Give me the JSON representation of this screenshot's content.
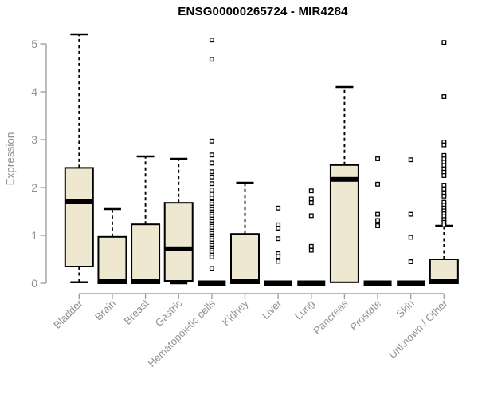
{
  "chart_data": {
    "type": "boxplot",
    "title": "ENSG00000265724 - MIR4284",
    "ylabel": "Expression",
    "xlabel": "",
    "ylim": [
      0,
      5.25
    ],
    "yticks": [
      0,
      1,
      2,
      3,
      4,
      5
    ],
    "grid": "off",
    "x_tick_rotation": 45,
    "categories": [
      "Bladder",
      "Brain",
      "Breast",
      "Gastric",
      "Hematopoietic cells",
      "Kidney",
      "Liver",
      "Lung",
      "Pancreas",
      "Prostate",
      "Skin",
      "Unknown / Other"
    ],
    "boxes": [
      {
        "label": "Bladder",
        "q1": 0.35,
        "median": 1.7,
        "q3": 2.41,
        "whisker_low": 0.02,
        "whisker_high": 5.2,
        "outliers": []
      },
      {
        "label": "Brain",
        "q1": 0.0,
        "median": 0.04,
        "q3": 0.97,
        "whisker_low": 0.0,
        "whisker_high": 1.55,
        "outliers": []
      },
      {
        "label": "Breast",
        "q1": 0.0,
        "median": 0.04,
        "q3": 1.23,
        "whisker_low": 0.0,
        "whisker_high": 2.65,
        "outliers": []
      },
      {
        "label": "Gastric",
        "q1": 0.05,
        "median": 0.72,
        "q3": 1.68,
        "whisker_low": 0.0,
        "whisker_high": 2.6,
        "outliers": []
      },
      {
        "label": "Hematopoietic cells",
        "flat": true,
        "q1": 0.0,
        "median": 0.0,
        "q3": 0.0,
        "whisker_low": 0.0,
        "whisker_high": 0.0,
        "outliers": [
          5.08,
          4.68,
          2.97,
          2.68,
          2.51,
          2.33,
          2.22,
          2.08,
          1.95,
          1.86,
          1.78,
          1.69,
          1.64,
          1.59,
          1.54,
          1.49,
          1.44,
          1.39,
          1.34,
          1.29,
          1.24,
          1.19,
          1.14,
          1.09,
          1.04,
          0.99,
          0.94,
          0.89,
          0.84,
          0.79,
          0.74,
          0.69,
          0.64,
          0.59,
          0.55,
          0.31
        ]
      },
      {
        "label": "Kidney",
        "q1": 0.0,
        "median": 0.04,
        "q3": 1.03,
        "whisker_low": 0.0,
        "whisker_high": 2.1,
        "outliers": []
      },
      {
        "label": "Liver",
        "flat": true,
        "q1": 0.0,
        "median": 0.0,
        "q3": 0.0,
        "whisker_low": 0.0,
        "whisker_high": 0.0,
        "outliers": [
          1.57,
          1.22,
          1.15,
          0.93,
          0.62,
          0.56,
          0.46
        ]
      },
      {
        "label": "Lung",
        "flat": true,
        "q1": 0.0,
        "median": 0.0,
        "q3": 0.0,
        "whisker_low": 0.0,
        "whisker_high": 0.0,
        "outliers": [
          1.93,
          1.76,
          1.68,
          1.41,
          0.77,
          0.69
        ]
      },
      {
        "label": "Pancreas",
        "q1": 0.02,
        "median": 2.17,
        "q3": 2.47,
        "whisker_low": 0.0,
        "whisker_high": 4.1,
        "outliers": []
      },
      {
        "label": "Prostate",
        "flat": true,
        "q1": 0.0,
        "median": 0.0,
        "q3": 0.0,
        "whisker_low": 0.0,
        "whisker_high": 0.0,
        "outliers": [
          2.6,
          2.07,
          1.44,
          1.31,
          1.2
        ]
      },
      {
        "label": "Skin",
        "flat": true,
        "q1": 0.0,
        "median": 0.0,
        "q3": 0.0,
        "whisker_low": 0.0,
        "whisker_high": 0.0,
        "outliers": [
          2.58,
          1.44,
          0.96,
          0.45
        ]
      },
      {
        "label": "Unknown / Other",
        "q1": 0.0,
        "median": 0.04,
        "q3": 0.5,
        "whisker_low": 0.0,
        "whisker_high": 1.2,
        "outliers": [
          5.03,
          3.9,
          2.95,
          2.89,
          2.67,
          2.6,
          2.53,
          2.46,
          2.39,
          2.32,
          2.25,
          2.05,
          1.97,
          1.89,
          1.82,
          1.69,
          1.63,
          1.57,
          1.51,
          1.45,
          1.39,
          1.33,
          1.27,
          1.22
        ]
      }
    ]
  },
  "style": {
    "background": "#FFFFFF",
    "box_fill": "#EDE8CF",
    "box_stroke": "#000000",
    "median_color": "#000000",
    "whisker_color": "#000000",
    "outlier_stroke": "#000000",
    "outlier_fill": "#FFFFFF",
    "axis_line_color": "#A0A0A0",
    "tick_text_color": "#909090",
    "title_color": "#000000"
  }
}
